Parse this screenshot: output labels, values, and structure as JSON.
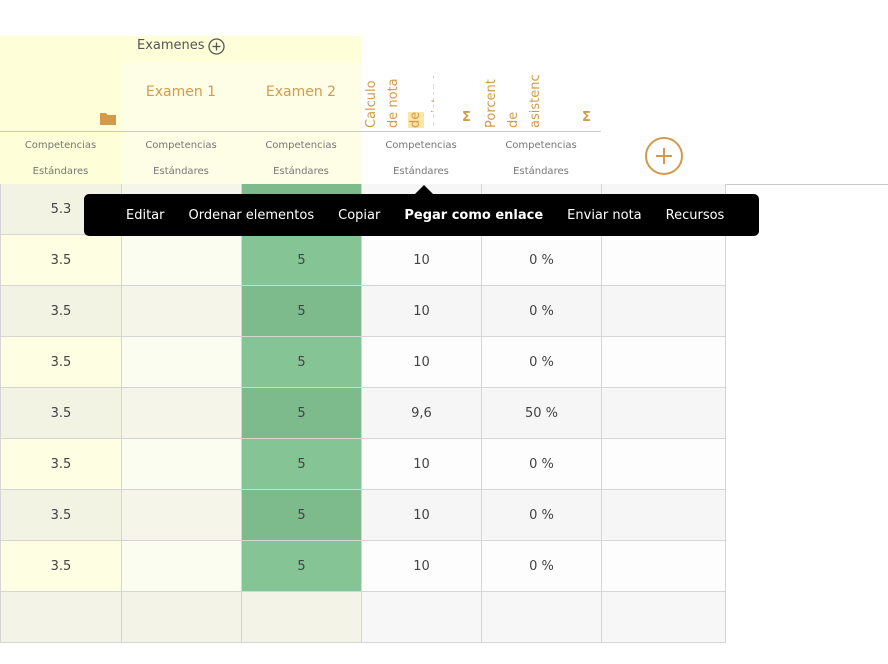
{
  "header": {
    "group_title": "Examenes",
    "columns": [
      {
        "label": "Examen 1"
      },
      {
        "label": "Examen 2"
      }
    ],
    "vertical_columns": [
      {
        "lines": [
          "Calculo",
          "de nota",
          "de",
          "asistenc"
        ]
      },
      {
        "lines": [
          "Porcent",
          "de",
          "asistenc"
        ]
      }
    ],
    "sigma": "Σ",
    "sub_labels": {
      "competencias": "Competencias",
      "estandares": "Estándares"
    }
  },
  "context_menu": {
    "items": [
      {
        "label": "Editar"
      },
      {
        "label": "Ordenar elementos"
      },
      {
        "label": "Copiar"
      },
      {
        "label": "Pegar como enlace"
      },
      {
        "label": "Enviar nota"
      },
      {
        "label": "Recursos"
      }
    ]
  },
  "rows": [
    {
      "c0": "5.3",
      "c2": "",
      "c3": "",
      "c4": ""
    },
    {
      "c0": "3.5",
      "c2": "5",
      "c3": "10",
      "c4": "0 %"
    },
    {
      "c0": "3.5",
      "c2": "5",
      "c3": "10",
      "c4": "0 %"
    },
    {
      "c0": "3.5",
      "c2": "5",
      "c3": "10",
      "c4": "0 %"
    },
    {
      "c0": "3.5",
      "c2": "5",
      "c3": "9,6",
      "c4": "50 %"
    },
    {
      "c0": "3.5",
      "c2": "5",
      "c3": "10",
      "c4": "0 %"
    },
    {
      "c0": "3.5",
      "c2": "5",
      "c3": "10",
      "c4": "0 %"
    },
    {
      "c0": "3.5",
      "c2": "5",
      "c3": "10",
      "c4": "0 %"
    }
  ],
  "colors": {
    "accent": "#d49a4c",
    "grade_green": "#85c494",
    "highlight": "#fefed8"
  },
  "icons": {
    "group_add": "plus-circle-icon",
    "folder": "folder-icon",
    "add_column": "plus-circle-icon"
  }
}
